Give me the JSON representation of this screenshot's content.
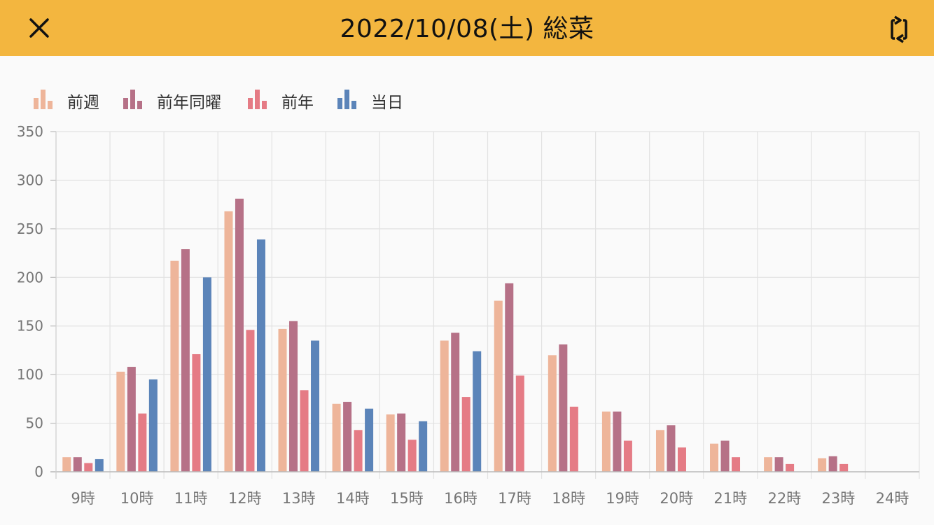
{
  "header": {
    "title": "2022/10/08(土) 総菜",
    "close_icon": "close-icon",
    "rotate_icon": "rotate-screen-icon",
    "background": "#f3b63f"
  },
  "chart_data": {
    "type": "bar",
    "categories": [
      "9時",
      "10時",
      "11時",
      "12時",
      "13時",
      "14時",
      "15時",
      "16時",
      "17時",
      "18時",
      "19時",
      "20時",
      "21時",
      "22時",
      "23時",
      "24時"
    ],
    "series": [
      {
        "name": "前週",
        "color": "#eeb59a",
        "values": [
          15,
          103,
          217,
          268,
          147,
          70,
          59,
          135,
          176,
          120,
          62,
          43,
          29,
          15,
          14,
          0
        ]
      },
      {
        "name": "前年同曜",
        "color": "#b67187",
        "values": [
          15,
          108,
          229,
          281,
          155,
          72,
          60,
          143,
          194,
          131,
          62,
          48,
          32,
          15,
          16,
          0
        ]
      },
      {
        "name": "前年",
        "color": "#e57b85",
        "values": [
          9,
          60,
          121,
          146,
          84,
          43,
          33,
          77,
          99,
          67,
          32,
          25,
          15,
          8,
          8,
          0
        ]
      },
      {
        "name": "当日",
        "color": "#5b84b9",
        "values": [
          13,
          95,
          200,
          239,
          135,
          65,
          52,
          124,
          null,
          null,
          null,
          null,
          null,
          null,
          null,
          null
        ]
      }
    ],
    "yticks": [
      "0",
      "50",
      "100",
      "150",
      "200",
      "250",
      "300",
      "350"
    ],
    "ylim": [
      0,
      350
    ],
    "grid": true,
    "legend": "top-left"
  }
}
